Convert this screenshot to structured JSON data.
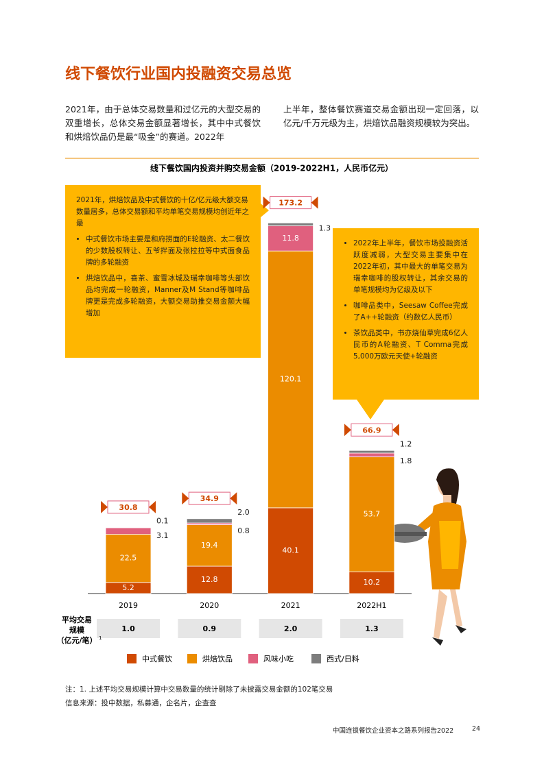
{
  "title": "线下餐饮行业国内投融资交易总览",
  "intro": [
    "2021年，由于总体交易数量和过亿元的大型交易的双重增长，总体交易金额显著增长，其中中式餐饮和烘焙饮品仍是最“吸金”的赛道。2022年",
    "上半年，整体餐饮赛道交易金额出现一定回落，以亿元/千万元级为主，烘焙饮品融资规模较为突出。"
  ],
  "chart_data": {
    "type": "bar",
    "stacked": true,
    "title": "线下餐饮国内投资并购交易金额（2019-2022H1，人民币亿元）",
    "categories": [
      "2019",
      "2020",
      "2021",
      "2022H1"
    ],
    "series": [
      {
        "name": "中式餐饮",
        "color": "#d04a02",
        "values": [
          5.2,
          12.8,
          40.1,
          10.2
        ],
        "value_labels": [
          "5.2",
          "12.8",
          "40.1",
          "10.2"
        ]
      },
      {
        "name": "烘焙饮品",
        "color": "#eb8c00",
        "values": [
          22.5,
          19.4,
          120.1,
          53.7
        ],
        "value_labels": [
          "22.5",
          "19.4",
          "120.1",
          "53.7"
        ]
      },
      {
        "name": "风味小吃",
        "color": "#e0607e",
        "values": [
          3.1,
          0.8,
          11.8,
          1.8
        ],
        "value_labels": [
          "3.1",
          "0.8",
          "11.8",
          "1.8"
        ]
      },
      {
        "name": "西式/日料",
        "color": "#7d7d7d",
        "values": [
          0.1,
          2.0,
          1.3,
          1.2
        ],
        "value_labels": [
          "0.1",
          "2.0",
          "1.3",
          "1.2"
        ]
      }
    ],
    "totals": [
      30.8,
      34.9,
      173.2,
      66.9
    ]
  },
  "avg_deal": {
    "label": [
      "平均交易",
      "规模",
      "（亿元/笔）"
    ],
    "footnote_mark": "1",
    "values": [
      "1.0",
      "0.9",
      "2.0",
      "1.3"
    ]
  },
  "callouts": [
    {
      "heading": "2021年，烘焙饮品及中式餐饮的十亿/亿元级大额交易数量居多，总体交易额和平均单笔交易规模均创近年之最",
      "bullets": [
        "中式餐饮市场主要是和府捞面的E轮融资、太二餐饮的少数股权转让、五爷拌面及张拉拉等中式面食品牌的多轮融资",
        "烘焙饮品中，喜茶、蜜雪冰城及瑞幸咖啡等头部饮品均完成一轮融资，Manner及M Stand等咖啡品牌更是完成多轮融资，大额交易助推交易金额大幅增加"
      ]
    },
    {
      "bullets": [
        "2022年上半年，餐饮市场投融资活跃度减弱，大型交易主要集中在2022年初，其中最大的单笔交易为瑞幸咖啡的股权转让，其余交易的单笔规模均为亿级及以下",
        "咖啡品类中，Seesaw Coffee完成了A++轮融资（约数亿人民币）",
        "茶饮品类中，书亦烧仙草完成6亿人民币的A轮融资、T Comma完成5,000万欧元天使+轮融资"
      ]
    }
  ],
  "notes": [
    "注：1. 上述平均交易规模计算中交易数量的统计剔除了未披露交易金额的102笔交易",
    "信息来源：投中数据，私募通，企名片，企查查"
  ],
  "footer": {
    "report": "中国连锁餐饮企业资本之路系列报告2022",
    "page": "24"
  }
}
